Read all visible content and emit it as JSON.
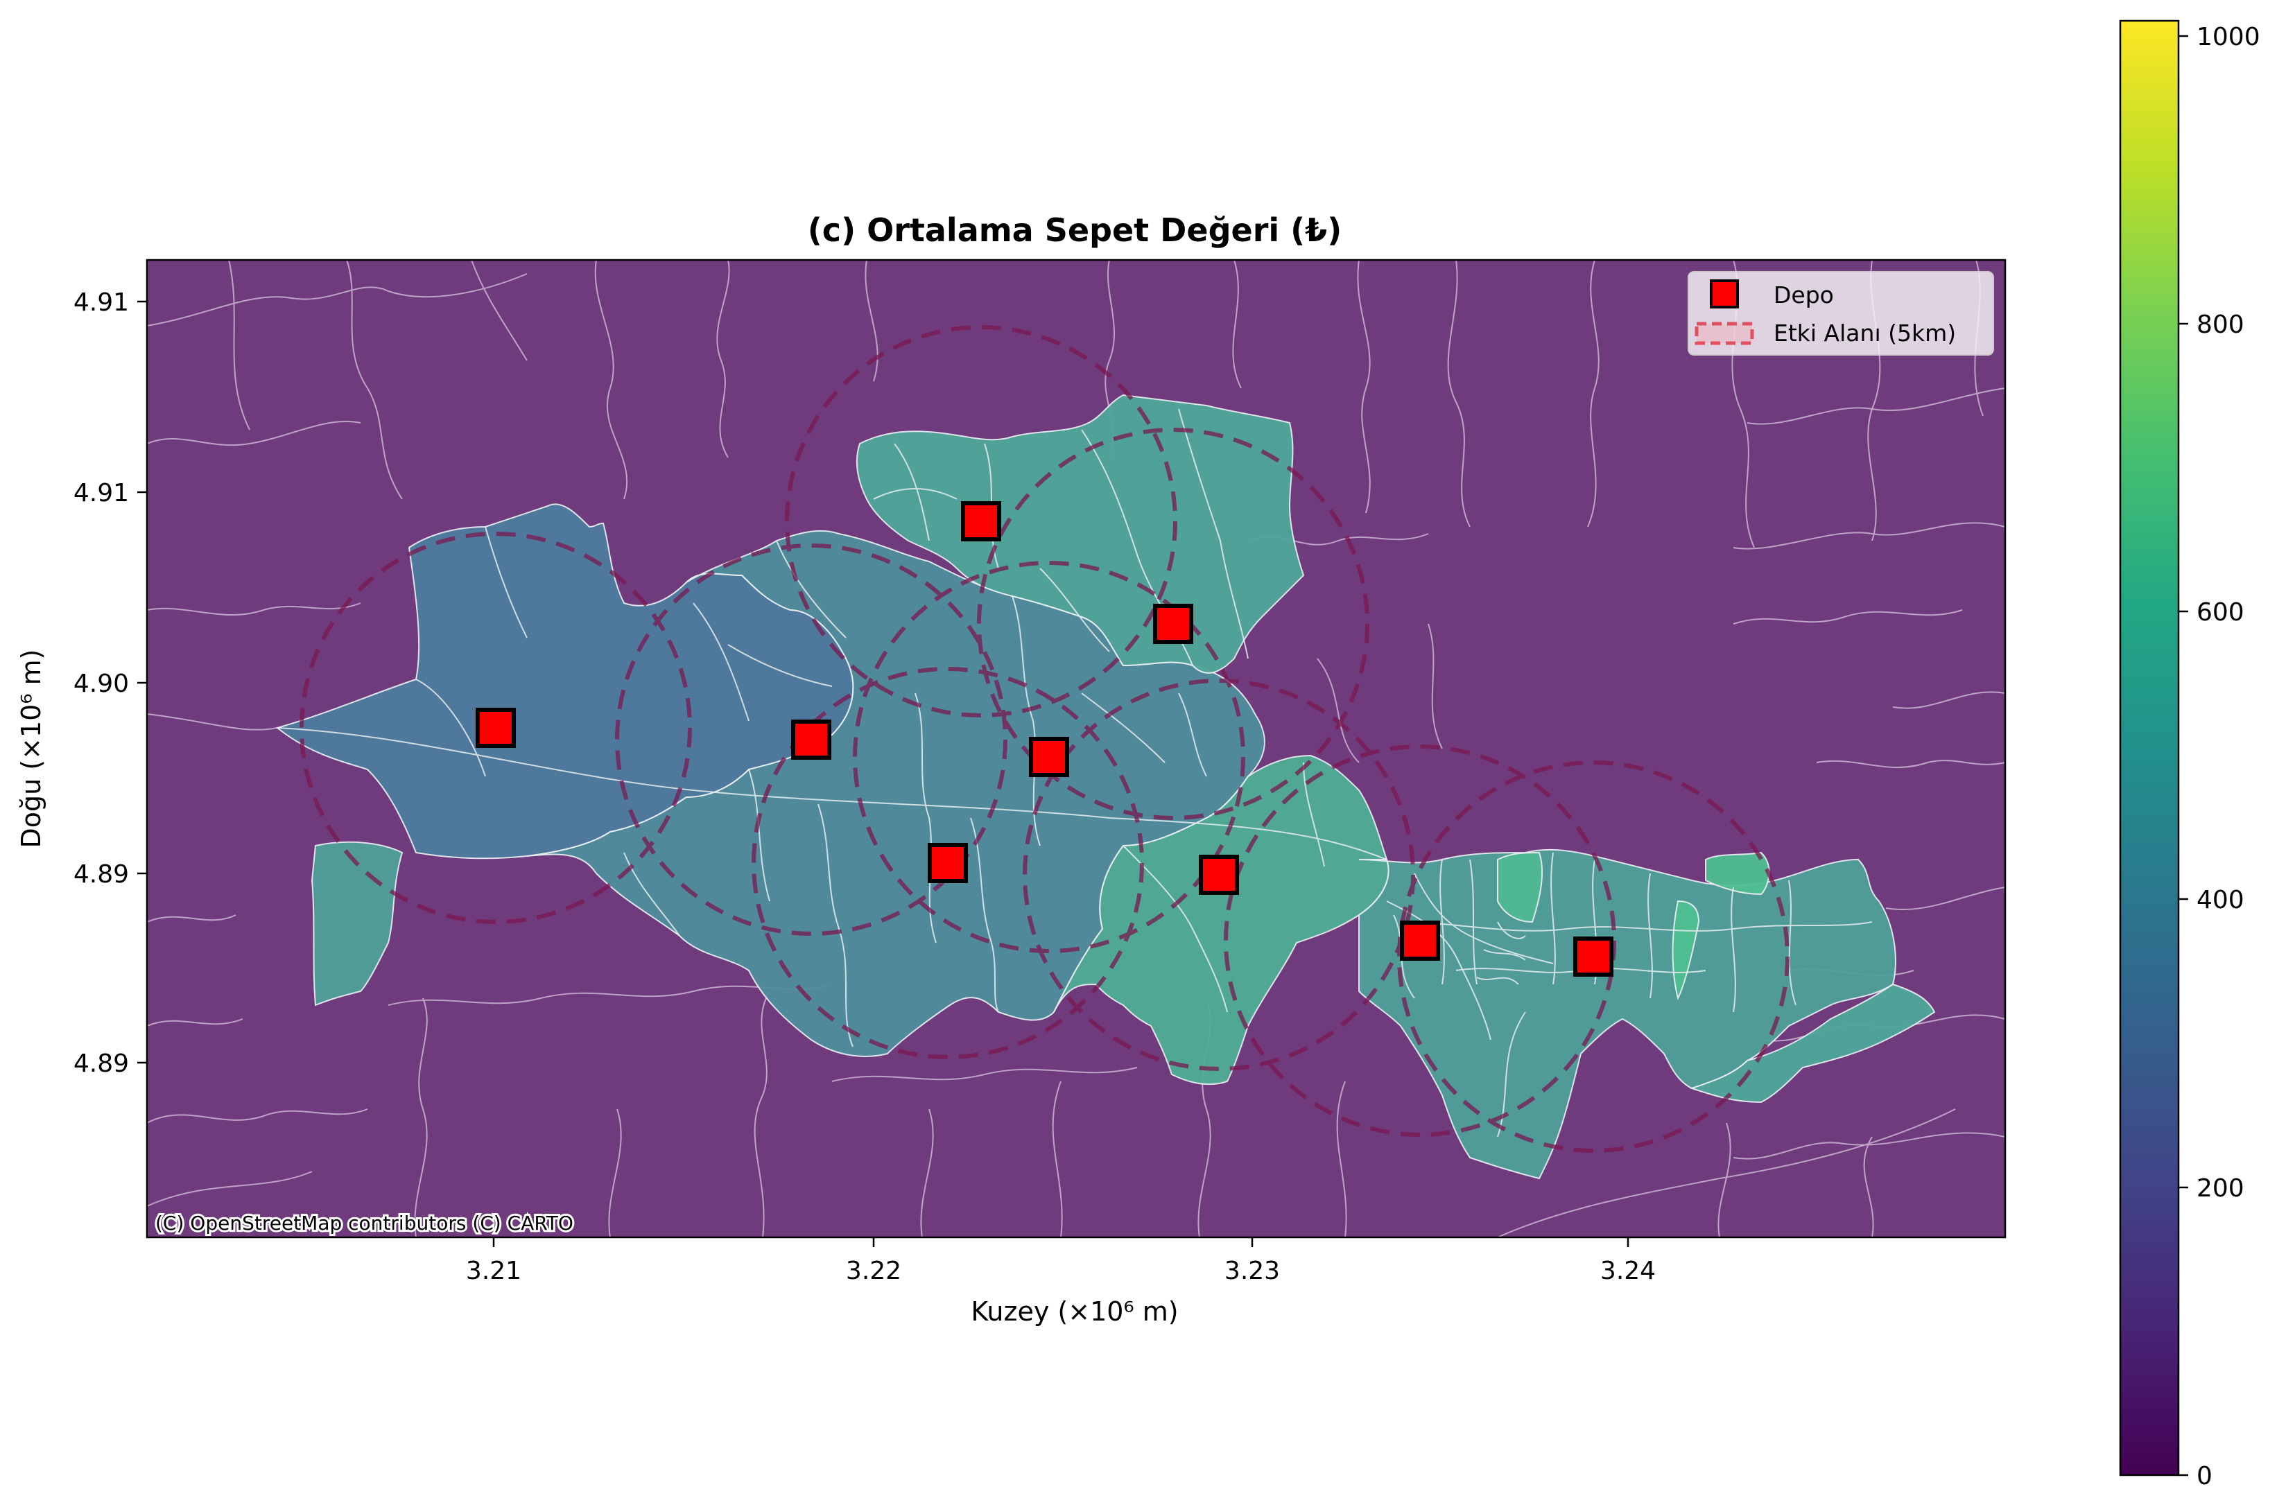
{
  "map": {
    "title": "(c) Ortalama Sepet Değeri (₺)",
    "xlabel": "Kuzey (×10⁶ m)",
    "ylabel": "Doğu (×10⁶ m)",
    "attribution": "(C) OpenStreetMap contributors (C) CARTO",
    "x_ticks": [
      "3.21",
      "3.22",
      "3.23",
      "3.24"
    ],
    "y_ticks": [
      "4.91",
      "4.91",
      "4.90",
      "4.89",
      "4.89"
    ],
    "colors": {
      "background": "#6f3b7c",
      "region_teal": "#4f8e9b",
      "region_green": "#4fae96",
      "region_steel": "#4e7d9e",
      "depot": "#ff0000",
      "circle": "#7a1850"
    },
    "legend": {
      "items": [
        {
          "label": "Depo",
          "symbol": "red-square-marker"
        },
        {
          "label": "Etki Alanı (5km)",
          "symbol": "dashed-circle-patch"
        }
      ],
      "placement": "top-right"
    }
  },
  "colorbar": {
    "ticks": [
      "0",
      "200",
      "400",
      "600",
      "800",
      "1000"
    ],
    "range": [
      0,
      1010
    ],
    "colormap": "viridis"
  }
}
